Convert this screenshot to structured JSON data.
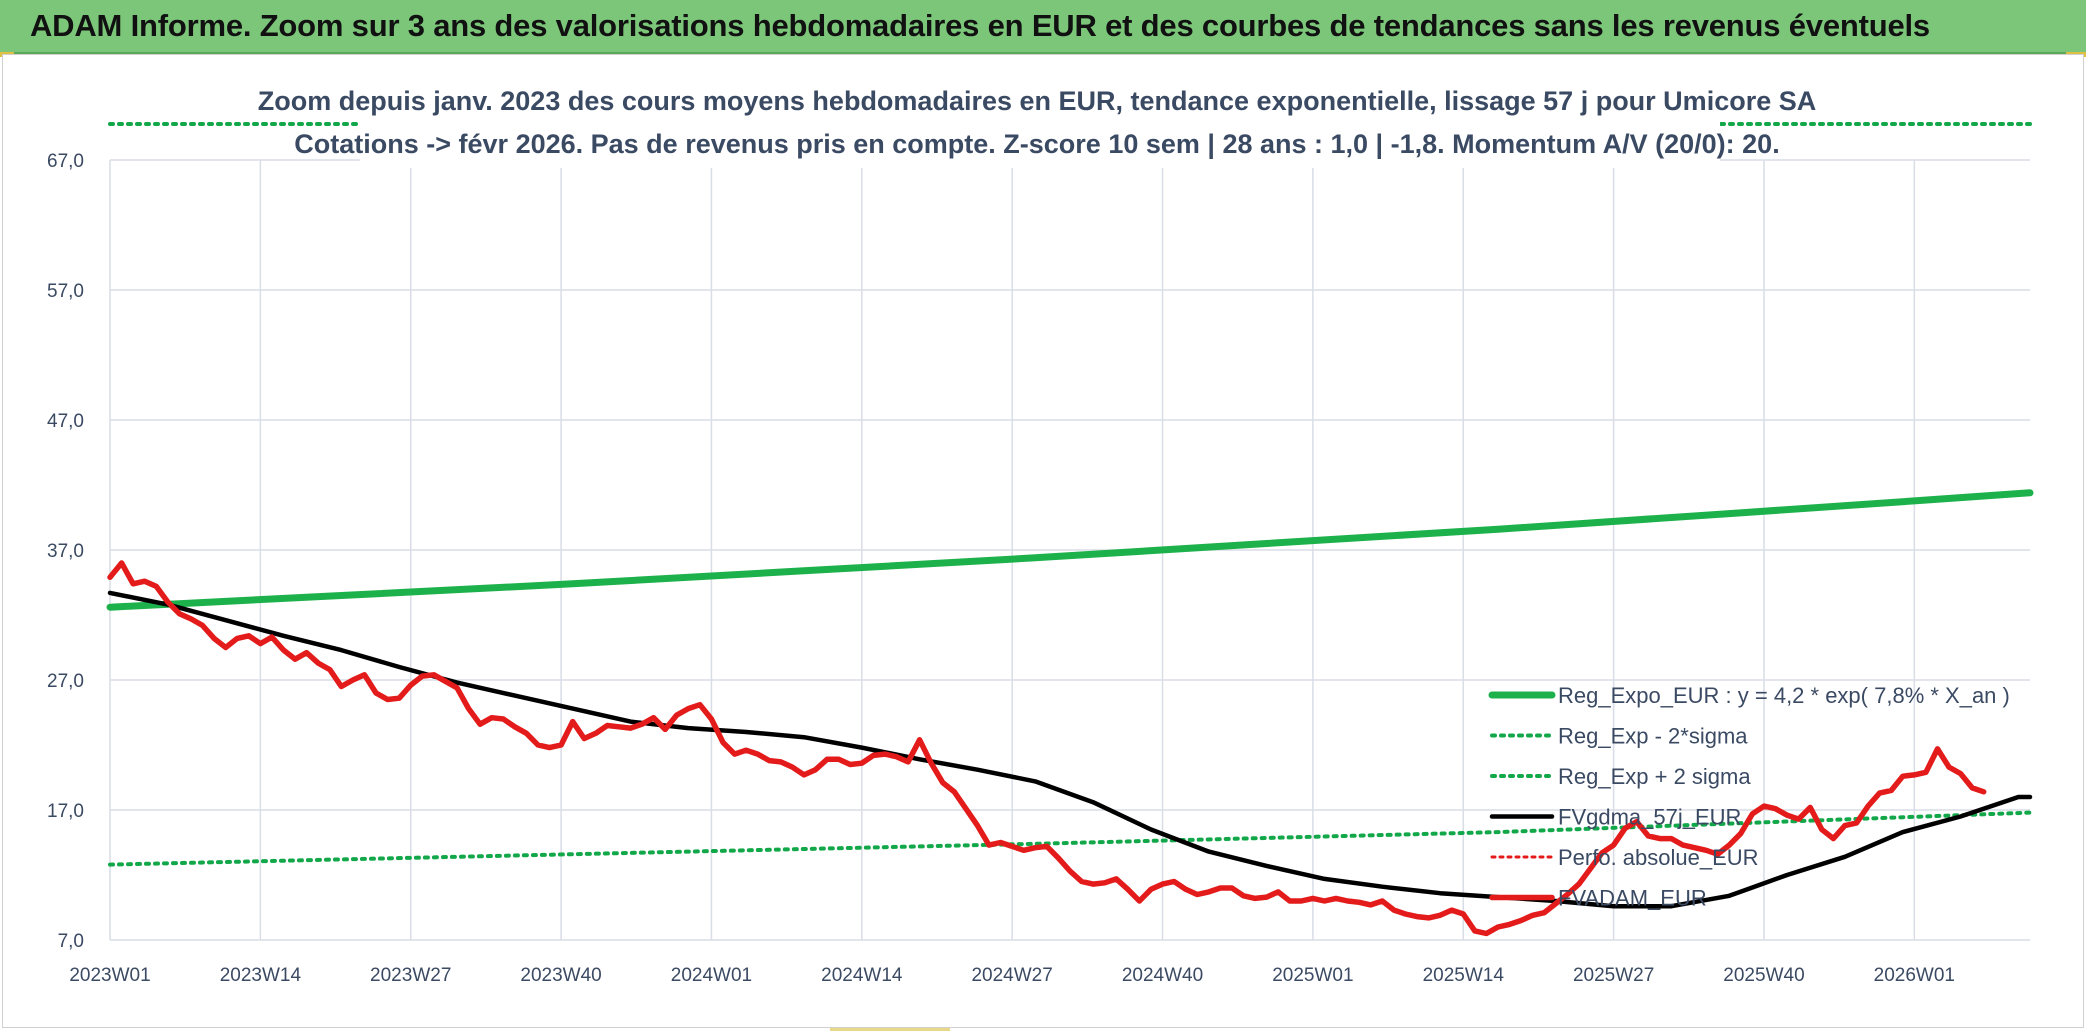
{
  "header": {
    "title": "ADAM Informe. Zoom sur 3 ans des valorisations hebdomadaires en EUR et des courbes de tendances sans les revenus éventuels"
  },
  "colors": {
    "header_band": "#7cc67a",
    "reg_expo": "#1db14b",
    "sigma": "#12a84a",
    "fvgdma": "#000000",
    "perfo": "#e41b1b",
    "fvadam": "#e41b1b",
    "grid": "#d9dde6",
    "text": "#3b4a63"
  },
  "chart_data": {
    "type": "line",
    "title": [
      "Zoom depuis janv. 2023 des cours moyens hebdomadaires en EUR, tendance exponentielle, lissage 57 j pour Umicore SA",
      "Cotations -> févr 2026. Pas de revenus pris en compte. Z-score 10 sem | 28 ans : 1,0 | -1,8. Momentum A/V (20/0): 20."
    ],
    "xlabel": "",
    "ylabel": "",
    "x_categories": [
      "2023W01",
      "2023W14",
      "2023W27",
      "2023W40",
      "2024W01",
      "2024W14",
      "2024W27",
      "2024W40",
      "2025W01",
      "2025W14",
      "2025W27",
      "2025W40",
      "2026W01"
    ],
    "x_range_weeks": [
      0,
      166
    ],
    "yticks": [
      "7,0",
      "17,0",
      "27,0",
      "37,0",
      "47,0",
      "57,0",
      "67,0"
    ],
    "ylim": [
      7,
      67
    ],
    "grid": true,
    "legend_position": "bottom-right",
    "series": [
      {
        "name": "Reg_Expo_EUR : y = 4,2 * exp( 7,8% *  X_an )",
        "style": "solid-thick",
        "points": [
          [
            0,
            32.6
          ],
          [
            20,
            33.5
          ],
          [
            40,
            34.4
          ],
          [
            60,
            35.4
          ],
          [
            80,
            36.4
          ],
          [
            100,
            37.5
          ],
          [
            120,
            38.6
          ],
          [
            140,
            39.8
          ],
          [
            158,
            40.9
          ],
          [
            166,
            41.4
          ]
        ]
      },
      {
        "name": "Reg_Exp - 2*sigma",
        "style": "dotted",
        "points": [
          [
            0,
            12.8
          ],
          [
            40,
            13.6
          ],
          [
            80,
            14.4
          ],
          [
            120,
            15.3
          ],
          [
            166,
            16.8
          ]
        ]
      },
      {
        "name": "Reg_Exp + 2 sigma",
        "style": "dotted",
        "points": [
          [
            0,
            68.8
          ],
          [
            166,
            68.8
          ]
        ]
      },
      {
        "name": "FVgdma_57j_EUR",
        "style": "solid",
        "points": [
          [
            0,
            33.7
          ],
          [
            5,
            32.8
          ],
          [
            10,
            31.6
          ],
          [
            15,
            30.4
          ],
          [
            20,
            29.3
          ],
          [
            25,
            28.0
          ],
          [
            30,
            26.8
          ],
          [
            35,
            25.8
          ],
          [
            40,
            24.8
          ],
          [
            45,
            23.8
          ],
          [
            50,
            23.3
          ],
          [
            55,
            23.0
          ],
          [
            60,
            22.6
          ],
          [
            65,
            21.8
          ],
          [
            70,
            20.9
          ],
          [
            75,
            20.1
          ],
          [
            80,
            19.2
          ],
          [
            85,
            17.6
          ],
          [
            90,
            15.5
          ],
          [
            95,
            13.8
          ],
          [
            100,
            12.7
          ],
          [
            105,
            11.7
          ],
          [
            110,
            11.1
          ],
          [
            115,
            10.6
          ],
          [
            120,
            10.3
          ],
          [
            125,
            10.0
          ],
          [
            130,
            9.6
          ],
          [
            135,
            9.6
          ],
          [
            140,
            10.4
          ],
          [
            145,
            12.0
          ],
          [
            150,
            13.4
          ],
          [
            155,
            15.3
          ],
          [
            160,
            16.5
          ],
          [
            165,
            18.0
          ],
          [
            166,
            18.0
          ]
        ]
      },
      {
        "name": "Perfo. absolue_EUR",
        "style": "dotted",
        "points": []
      },
      {
        "name": "FVADAM_EUR",
        "style": "solid-thick",
        "points": [
          [
            0,
            34.9
          ],
          [
            1,
            36.0
          ],
          [
            2,
            34.4
          ],
          [
            3,
            34.6
          ],
          [
            4,
            34.2
          ],
          [
            5,
            33.0
          ],
          [
            6,
            32.1
          ],
          [
            7,
            31.7
          ],
          [
            8,
            31.2
          ],
          [
            9,
            30.2
          ],
          [
            10,
            29.5
          ],
          [
            11,
            30.2
          ],
          [
            12,
            30.4
          ],
          [
            13,
            29.8
          ],
          [
            14,
            30.3
          ],
          [
            15,
            29.3
          ],
          [
            16,
            28.6
          ],
          [
            17,
            29.1
          ],
          [
            18,
            28.3
          ],
          [
            19,
            27.8
          ],
          [
            20,
            26.5
          ],
          [
            21,
            27.0
          ],
          [
            22,
            27.4
          ],
          [
            23,
            26.0
          ],
          [
            24,
            25.5
          ],
          [
            25,
            25.6
          ],
          [
            26,
            26.6
          ],
          [
            27,
            27.3
          ],
          [
            28,
            27.4
          ],
          [
            29,
            26.9
          ],
          [
            30,
            26.4
          ],
          [
            31,
            24.8
          ],
          [
            32,
            23.6
          ],
          [
            33,
            24.1
          ],
          [
            34,
            24.0
          ],
          [
            35,
            23.4
          ],
          [
            36,
            22.9
          ],
          [
            37,
            22.0
          ],
          [
            38,
            21.8
          ],
          [
            39,
            22.0
          ],
          [
            40,
            23.8
          ],
          [
            41,
            22.5
          ],
          [
            42,
            22.9
          ],
          [
            43,
            23.5
          ],
          [
            44,
            23.4
          ],
          [
            45,
            23.3
          ],
          [
            46,
            23.6
          ],
          [
            47,
            24.1
          ],
          [
            48,
            23.2
          ],
          [
            49,
            24.3
          ],
          [
            50,
            24.8
          ],
          [
            51,
            25.1
          ],
          [
            52,
            24.0
          ],
          [
            53,
            22.2
          ],
          [
            54,
            21.3
          ],
          [
            55,
            21.6
          ],
          [
            56,
            21.3
          ],
          [
            57,
            20.8
          ],
          [
            58,
            20.7
          ],
          [
            59,
            20.3
          ],
          [
            60,
            19.7
          ],
          [
            61,
            20.1
          ],
          [
            62,
            20.9
          ],
          [
            63,
            20.9
          ],
          [
            64,
            20.5
          ],
          [
            65,
            20.6
          ],
          [
            66,
            21.2
          ],
          [
            67,
            21.3
          ],
          [
            68,
            21.1
          ],
          [
            69,
            20.7
          ],
          [
            70,
            22.4
          ],
          [
            71,
            20.6
          ],
          [
            72,
            19.1
          ],
          [
            73,
            18.4
          ],
          [
            74,
            17.1
          ],
          [
            75,
            15.8
          ],
          [
            76,
            14.3
          ],
          [
            77,
            14.5
          ],
          [
            78,
            14.2
          ],
          [
            79,
            13.9
          ],
          [
            80,
            14.1
          ],
          [
            81,
            14.2
          ],
          [
            82,
            13.3
          ],
          [
            83,
            12.3
          ],
          [
            84,
            11.5
          ],
          [
            85,
            11.3
          ],
          [
            86,
            11.4
          ],
          [
            87,
            11.7
          ],
          [
            88,
            10.9
          ],
          [
            89,
            10.0
          ],
          [
            90,
            10.9
          ],
          [
            91,
            11.3
          ],
          [
            92,
            11.5
          ],
          [
            93,
            10.9
          ],
          [
            94,
            10.5
          ],
          [
            95,
            10.7
          ],
          [
            96,
            11.0
          ],
          [
            97,
            11.0
          ],
          [
            98,
            10.4
          ],
          [
            99,
            10.2
          ],
          [
            100,
            10.3
          ],
          [
            101,
            10.7
          ],
          [
            102,
            10.0
          ],
          [
            103,
            10.0
          ],
          [
            104,
            10.2
          ],
          [
            105,
            10.0
          ],
          [
            106,
            10.2
          ],
          [
            107,
            10.0
          ],
          [
            108,
            9.9
          ],
          [
            109,
            9.7
          ],
          [
            110,
            10.0
          ],
          [
            111,
            9.3
          ],
          [
            112,
            9.0
          ],
          [
            113,
            8.8
          ],
          [
            114,
            8.7
          ],
          [
            115,
            8.9
          ],
          [
            116,
            9.3
          ],
          [
            117,
            9.0
          ],
          [
            118,
            7.7
          ],
          [
            119,
            7.5
          ],
          [
            120,
            8.0
          ],
          [
            121,
            8.2
          ],
          [
            122,
            8.5
          ],
          [
            123,
            8.9
          ],
          [
            124,
            9.1
          ],
          [
            125,
            9.8
          ],
          [
            126,
            10.5
          ],
          [
            127,
            11.3
          ],
          [
            128,
            12.5
          ],
          [
            129,
            13.7
          ],
          [
            130,
            14.3
          ],
          [
            131,
            15.6
          ],
          [
            132,
            16.1
          ],
          [
            133,
            15.0
          ],
          [
            134,
            14.8
          ],
          [
            135,
            14.8
          ],
          [
            136,
            14.3
          ],
          [
            137,
            14.1
          ],
          [
            138,
            13.9
          ],
          [
            139,
            13.6
          ],
          [
            140,
            14.3
          ],
          [
            141,
            15.2
          ],
          [
            142,
            16.7
          ],
          [
            143,
            17.3
          ],
          [
            144,
            17.1
          ],
          [
            145,
            16.6
          ],
          [
            146,
            16.3
          ],
          [
            147,
            17.2
          ],
          [
            148,
            15.5
          ],
          [
            149,
            14.8
          ],
          [
            150,
            15.8
          ],
          [
            151,
            16.0
          ],
          [
            152,
            17.3
          ],
          [
            153,
            18.3
          ],
          [
            154,
            18.5
          ],
          [
            155,
            19.6
          ],
          [
            156,
            19.7
          ],
          [
            157,
            19.9
          ],
          [
            158,
            21.7
          ],
          [
            159,
            20.3
          ],
          [
            160,
            19.8
          ],
          [
            161,
            18.7
          ],
          [
            162,
            18.4
          ]
        ]
      }
    ]
  }
}
